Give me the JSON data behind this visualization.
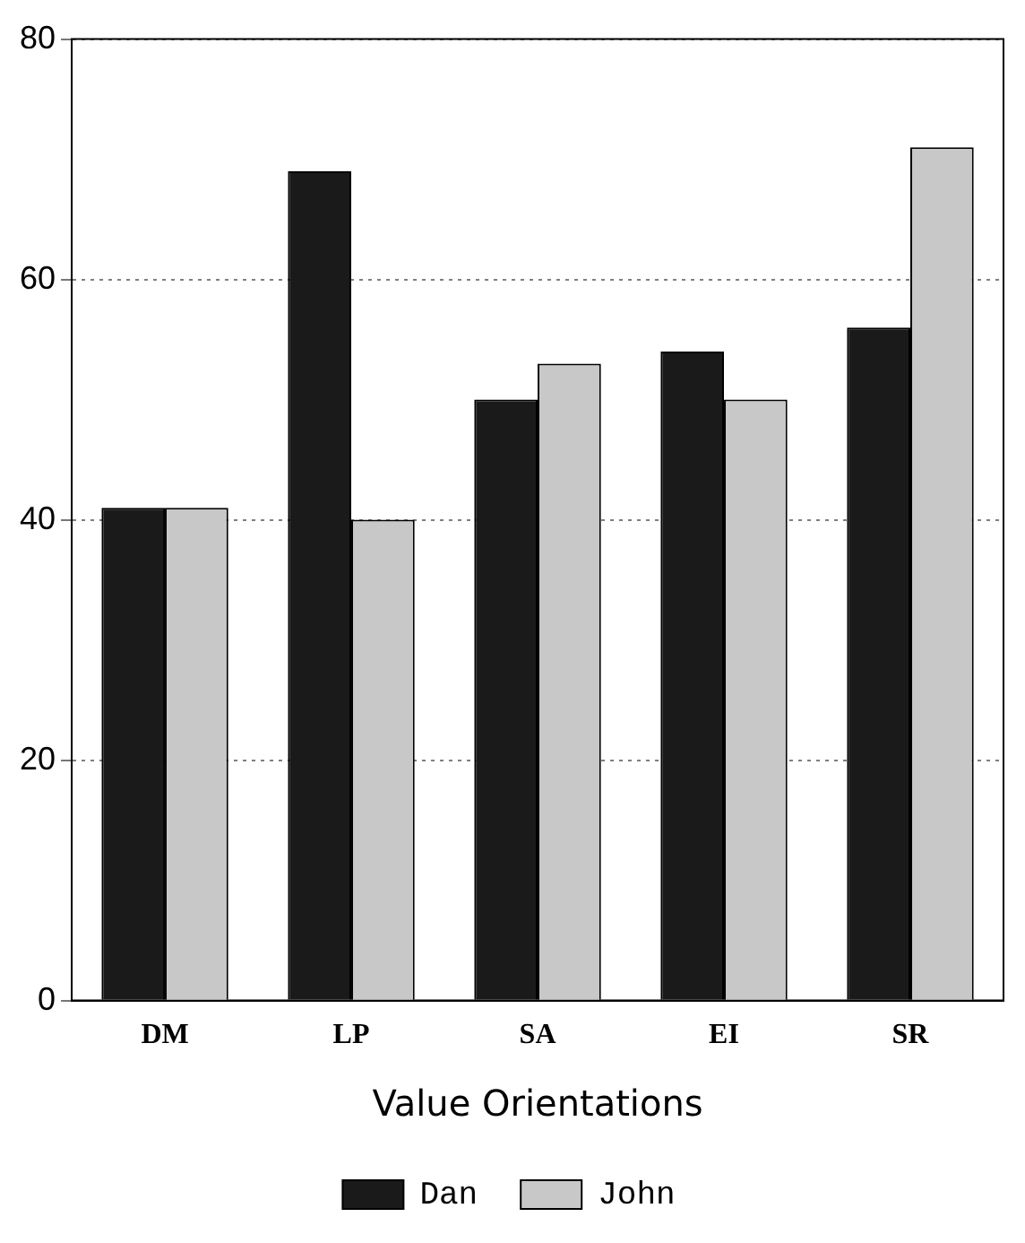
{
  "chart_data": {
    "type": "bar",
    "xlabel": "Value Orientations",
    "categories": [
      "DM",
      "LP",
      "SA",
      "EI",
      "SR"
    ],
    "series": [
      {
        "name": "Dan",
        "color": "#1a1a1a",
        "values": [
          41,
          69,
          50,
          54,
          56
        ]
      },
      {
        "name": "John",
        "color": "#c8c8c8",
        "values": [
          41,
          40,
          53,
          50,
          71
        ]
      }
    ],
    "ylim": [
      0,
      80
    ],
    "yticks": [
      0,
      20,
      40,
      60,
      80
    ],
    "grid": "y",
    "legend": "bottom"
  }
}
